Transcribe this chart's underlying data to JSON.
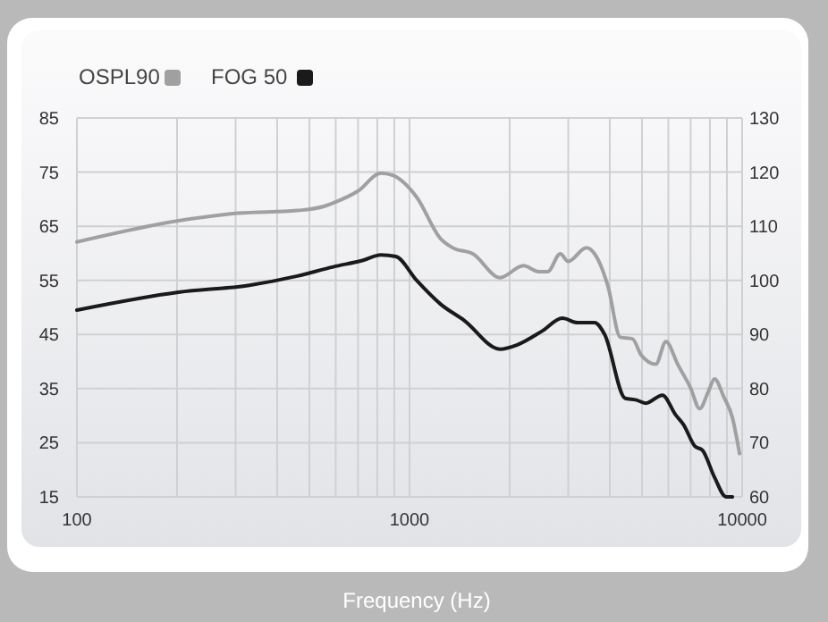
{
  "chart_data": {
    "type": "line",
    "xlabel": "Frequency (Hz)",
    "log": "x",
    "grid": true,
    "legend": "top left",
    "line_style": "solid",
    "marker": "none",
    "xlim": [
      100,
      10000
    ],
    "xticks": [
      100,
      {
        "value": 200,
        "label": null
      },
      {
        "value": 300,
        "label": null
      },
      {
        "value": 400,
        "label": null
      },
      {
        "value": 500,
        "label": null
      },
      {
        "value": 600,
        "label": null
      },
      {
        "value": 700,
        "label": null
      },
      {
        "value": 800,
        "label": null
      },
      {
        "value": 900,
        "label": null
      },
      1000,
      {
        "value": 2000,
        "label": null
      },
      {
        "value": 3000,
        "label": null
      },
      {
        "value": 4000,
        "label": null
      },
      {
        "value": 5000,
        "label": null
      },
      {
        "value": 6000,
        "label": null
      },
      {
        "value": 7000,
        "label": null
      },
      {
        "value": 8000,
        "label": null
      },
      {
        "value": 9000,
        "label": null
      },
      10000
    ],
    "ylim": [
      15,
      85
    ],
    "yticks": [
      15,
      25,
      35,
      45,
      55,
      65,
      75,
      85
    ],
    "y2lim": [
      60,
      130
    ],
    "y2ticks": [
      60,
      70,
      80,
      90,
      100,
      110,
      120,
      130
    ],
    "series": [
      {
        "name": "OSPL90",
        "color": "#a0a0a0",
        "axis": "y2",
        "x": [
          100,
          202,
          305,
          460,
          555,
          590,
          700,
          820,
          890,
          1050,
          1240,
          1350,
          1550,
          1870,
          2200,
          2450,
          2600,
          2840,
          3000,
          3400,
          3600,
          3950,
          4300,
          4680,
          4970,
          5500,
          5900,
          6400,
          7000,
          7450,
          7930,
          8260,
          8800,
          9350,
          9820
        ],
        "values": [
          107.1,
          111,
          112.4,
          112.9,
          113.7,
          114.3,
          116.5,
          119.8,
          119.4,
          115.4,
          107.7,
          106,
          104.9,
          100.5,
          102.7,
          101.6,
          101.6,
          104.9,
          103.5,
          106,
          104.9,
          98.9,
          89.5,
          89.2,
          86.2,
          84.5,
          88.7,
          84.5,
          80.1,
          76.3,
          79.6,
          81.8,
          78.5,
          74.6,
          68
        ]
      },
      {
        "name": "FOG 50",
        "color": "#1a1a1a",
        "x": [
          100,
          202,
          330,
          460,
          590,
          725,
          820,
          910,
          1050,
          1240,
          1460,
          1870,
          2110,
          2500,
          2880,
          3200,
          3600,
          3860,
          4450,
          4810,
          5130,
          5760,
          6300,
          6670,
          7200,
          7600,
          8260,
          8950,
          9350
        ],
        "values": [
          49.5,
          52.8,
          54.1,
          55.8,
          57.5,
          58.7,
          59.7,
          59.4,
          55,
          50.6,
          47.6,
          42.3,
          43.1,
          45.6,
          48,
          47.2,
          47.2,
          45,
          33.2,
          32.9,
          32.3,
          33.8,
          30.2,
          28.3,
          24.4,
          23.6,
          18.6,
          15,
          15
        ]
      }
    ]
  }
}
